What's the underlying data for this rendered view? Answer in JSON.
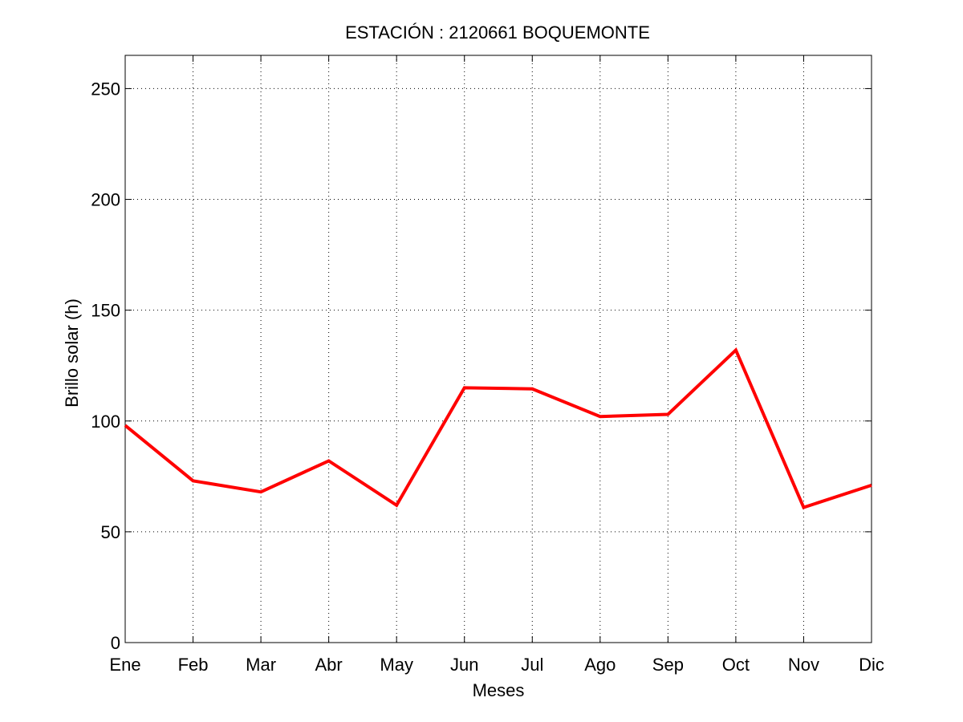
{
  "chart_data": {
    "type": "line",
    "title": "ESTACIÓN :  2120661  BOQUEMONTE",
    "xlabel": "Meses",
    "ylabel": "Brillo solar (h)",
    "categories": [
      "Ene",
      "Feb",
      "Mar",
      "Abr",
      "May",
      "Jun",
      "Jul",
      "Ago",
      "Sep",
      "Oct",
      "Nov",
      "Dic"
    ],
    "series": [
      {
        "values": [
          98,
          73,
          68,
          82,
          62,
          115,
          114.5,
          102,
          103,
          132,
          61,
          71
        ],
        "color": "#ff0000"
      }
    ],
    "ylim": [
      0,
      265
    ],
    "yticks": [
      0,
      50,
      100,
      150,
      200,
      250
    ],
    "grid": true
  }
}
